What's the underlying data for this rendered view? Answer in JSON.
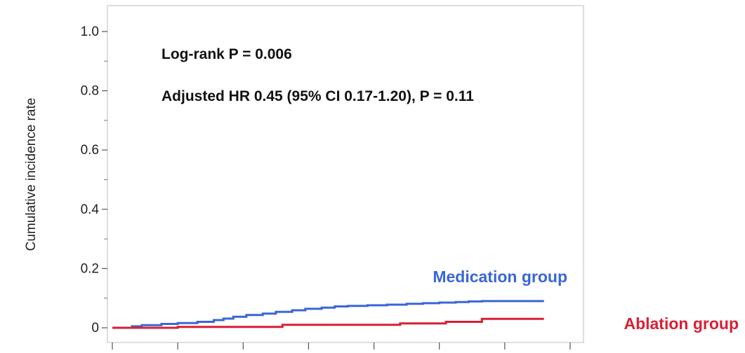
{
  "chart_data": {
    "type": "line",
    "title": "",
    "xlabel": "",
    "ylabel": "Cumulative incidence rate",
    "ylim": [
      0,
      1.0
    ],
    "xlim": [
      0,
      7
    ],
    "y_ticks": [
      {
        "value": 0,
        "label": "0"
      },
      {
        "value": 0.2,
        "label": "0.2"
      },
      {
        "value": 0.4,
        "label": "0.4"
      },
      {
        "value": 0.6,
        "label": "0.6"
      },
      {
        "value": 0.8,
        "label": "0.8"
      },
      {
        "value": 1.0,
        "label": "1.0"
      }
    ],
    "x_ticks": [
      0,
      1,
      2,
      3,
      4,
      5,
      6,
      7
    ],
    "annotations": [
      "Log-rank P = 0.006",
      "Adjusted HR 0.45 (95% CI 0.17-1.20), P = 0.11"
    ],
    "series": [
      {
        "name": "Medication group",
        "color": "#3a66d6",
        "points": [
          [
            0,
            0
          ],
          [
            0.3,
            0.005
          ],
          [
            0.45,
            0.009
          ],
          [
            0.75,
            0.013
          ],
          [
            1.0,
            0.016
          ],
          [
            1.3,
            0.02
          ],
          [
            1.55,
            0.026
          ],
          [
            1.7,
            0.031
          ],
          [
            1.85,
            0.037
          ],
          [
            2.05,
            0.043
          ],
          [
            2.3,
            0.048
          ],
          [
            2.5,
            0.054
          ],
          [
            2.75,
            0.059
          ],
          [
            2.95,
            0.064
          ],
          [
            3.2,
            0.068
          ],
          [
            3.4,
            0.072
          ],
          [
            3.6,
            0.074
          ],
          [
            3.9,
            0.076
          ],
          [
            4.2,
            0.078
          ],
          [
            4.5,
            0.081
          ],
          [
            4.75,
            0.083
          ],
          [
            5.0,
            0.085
          ],
          [
            5.25,
            0.087
          ],
          [
            5.45,
            0.089
          ],
          [
            5.65,
            0.09
          ],
          [
            6.6,
            0.09
          ]
        ]
      },
      {
        "name": "Ablation group",
        "color": "#d81f34",
        "points": [
          [
            0,
            0
          ],
          [
            1.0,
            0.003
          ],
          [
            2.6,
            0.01
          ],
          [
            4.4,
            0.015
          ],
          [
            5.1,
            0.02
          ],
          [
            5.65,
            0.03
          ],
          [
            6.6,
            0.03
          ]
        ]
      }
    ],
    "grid": false
  }
}
